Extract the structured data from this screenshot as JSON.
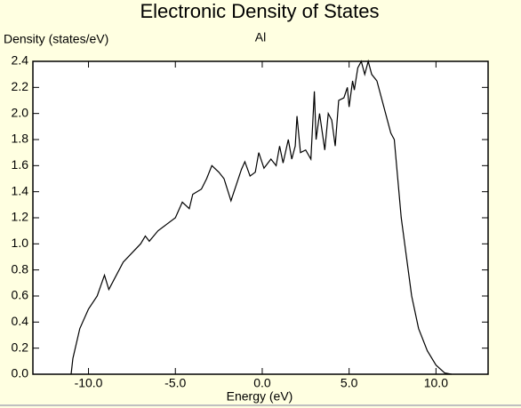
{
  "chart_data": {
    "type": "line",
    "title": "Electronic Density of States",
    "y_label": "Density (states/eV)",
    "x_label": "Energy (eV)",
    "annotation": "Al",
    "xlim": [
      -13.2,
      13.0
    ],
    "ylim": [
      0,
      2.4
    ],
    "xticks": [
      {
        "value": -10,
        "label": "-10.0"
      },
      {
        "value": -5,
        "label": "-5.0"
      },
      {
        "value": 0,
        "label": "0.0"
      },
      {
        "value": 5,
        "label": "5.0"
      },
      {
        "value": 10,
        "label": "10.0"
      }
    ],
    "yticks": [
      {
        "value": 0,
        "label": "0.0"
      },
      {
        "value": 0.2,
        "label": "0.2"
      },
      {
        "value": 0.4,
        "label": "0.4"
      },
      {
        "value": 0.6,
        "label": "0.6"
      },
      {
        "value": 0.8,
        "label": "0.8"
      },
      {
        "value": 1.0,
        "label": "1.0"
      },
      {
        "value": 1.2,
        "label": "1.2"
      },
      {
        "value": 1.4,
        "label": "1.4"
      },
      {
        "value": 1.6,
        "label": "1.6"
      },
      {
        "value": 1.8,
        "label": "1.8"
      },
      {
        "value": 2.0,
        "label": "2.0"
      },
      {
        "value": 2.2,
        "label": "2.2"
      },
      {
        "value": 2.4,
        "label": "2.4"
      }
    ],
    "x": [
      -11.0,
      -10.9,
      -10.5,
      -10.0,
      -9.5,
      -9.08,
      -8.83,
      -8.0,
      -7.0,
      -6.73,
      -6.5,
      -6.0,
      -5.5,
      -5.0,
      -4.6,
      -4.2,
      -4.0,
      -3.5,
      -3.2,
      -2.9,
      -2.5,
      -2.2,
      -1.8,
      -1.5,
      -1.2,
      -1.0,
      -0.7,
      -0.4,
      -0.2,
      0.1,
      0.5,
      0.8,
      1.0,
      1.2,
      1.5,
      1.7,
      1.9,
      2.0,
      2.2,
      2.5,
      2.8,
      3.0,
      3.1,
      3.3,
      3.6,
      3.8,
      4.0,
      4.2,
      4.4,
      4.7,
      4.9,
      5.0,
      5.2,
      5.3,
      5.5,
      5.7,
      5.9,
      6.1,
      6.3,
      6.6,
      7.0,
      7.4,
      7.6,
      7.8,
      8.0,
      8.3,
      8.6,
      9.0,
      9.5,
      10.0,
      10.5,
      10.9
    ],
    "series": [
      {
        "name": "Al",
        "color": "#000000",
        "values": [
          0,
          0.12,
          0.35,
          0.5,
          0.6,
          0.76,
          0.65,
          0.86,
          1.0,
          1.06,
          1.02,
          1.1,
          1.15,
          1.2,
          1.32,
          1.27,
          1.38,
          1.42,
          1.5,
          1.6,
          1.55,
          1.5,
          1.33,
          1.45,
          1.57,
          1.63,
          1.52,
          1.55,
          1.7,
          1.58,
          1.65,
          1.6,
          1.75,
          1.62,
          1.8,
          1.65,
          1.75,
          1.98,
          1.7,
          1.72,
          1.65,
          2.17,
          1.8,
          2.0,
          1.72,
          2.0,
          1.95,
          1.75,
          2.1,
          2.12,
          2.2,
          2.05,
          2.25,
          2.18,
          2.35,
          2.4,
          2.3,
          2.4,
          2.3,
          2.25,
          2.05,
          1.85,
          1.8,
          1.5,
          1.2,
          0.9,
          0.6,
          0.35,
          0.18,
          0.07,
          0.01,
          0
        ]
      }
    ]
  }
}
